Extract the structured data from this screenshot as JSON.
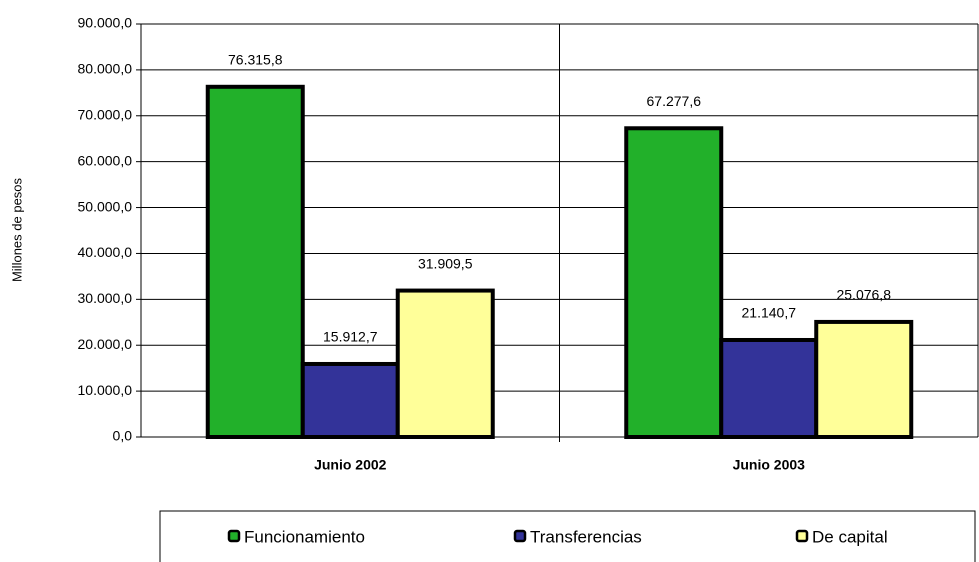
{
  "chart_data": {
    "type": "bar",
    "y_label": "Millones de pesos",
    "categories": [
      "Junio 2002",
      "Junio 2003"
    ],
    "series": [
      {
        "name": "Funcionamiento",
        "color": "#22b02a",
        "values": [
          76315.8,
          67277.6
        ],
        "value_labels": [
          "76.315,8",
          "67.277,6"
        ]
      },
      {
        "name": "Transferencias",
        "color": "#333399",
        "values": [
          15912.7,
          21140.7
        ],
        "value_labels": [
          "15.912,7",
          "21.140,7"
        ]
      },
      {
        "name": "De capital",
        "color": "#ffff99",
        "values": [
          31909.5,
          25076.8
        ],
        "value_labels": [
          "31.909,5",
          "25.076,8"
        ]
      }
    ],
    "ylim": [
      0,
      90000
    ],
    "yticks": [
      {
        "value": 0,
        "label": "0,0"
      },
      {
        "value": 10000,
        "label": "10.000,0"
      },
      {
        "value": 20000,
        "label": "20.000,0"
      },
      {
        "value": 30000,
        "label": "30.000,0"
      },
      {
        "value": 40000,
        "label": "40.000,0"
      },
      {
        "value": 50000,
        "label": "50.000,0"
      },
      {
        "value": 60000,
        "label": "60.000,0"
      },
      {
        "value": 70000,
        "label": "70.000,0"
      },
      {
        "value": 80000,
        "label": "80.000,0"
      },
      {
        "value": 90000,
        "label": "90.000,0"
      }
    ],
    "grid": true,
    "legend": "bottom"
  }
}
